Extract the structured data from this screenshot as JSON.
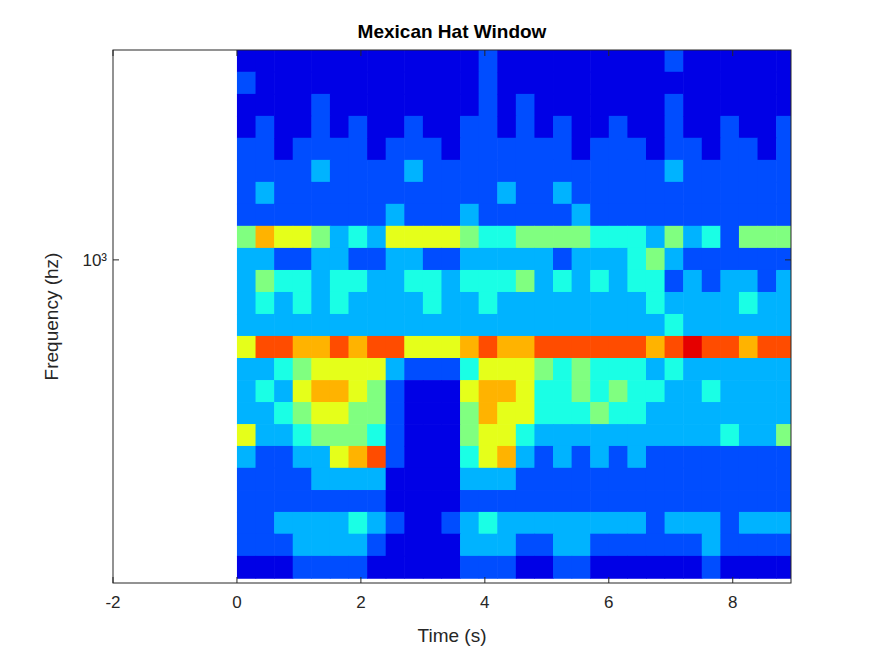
{
  "chart_data": {
    "type": "heatmap",
    "title": "Mexican Hat Window",
    "x_label": "Time (s)",
    "y_label": "Frequency (hz)",
    "log": "y",
    "xlim": [
      -2,
      8.94
    ],
    "ylim": [
      134,
      3690
    ],
    "xticks": [
      -2,
      0,
      2,
      4,
      6,
      8
    ],
    "yticks": [
      {
        "value": 1000,
        "label": "10³"
      }
    ],
    "zlim": [
      0,
      10
    ],
    "x": [
      0.15,
      0.45,
      0.75,
      1.05,
      1.35,
      1.65,
      1.95,
      2.25,
      2.55,
      2.85,
      3.15,
      3.45,
      3.75,
      4.05,
      4.35,
      4.65,
      4.95,
      5.25,
      5.55,
      5.85,
      6.15,
      6.45,
      6.75,
      7.05,
      7.35,
      7.65,
      7.95,
      8.25,
      8.55,
      8.85
    ],
    "y": [
      3450,
      3010,
      2620,
      2290,
      1995,
      1740,
      1517,
      1324,
      1154,
      1006,
      877,
      765,
      667,
      582,
      507,
      442,
      386,
      336,
      294,
      256,
      223,
      195,
      170,
      148
    ],
    "cells": [
      [
        1,
        1,
        1,
        1,
        1,
        1,
        1,
        1,
        1,
        1,
        1,
        1,
        1,
        2,
        1,
        1,
        1,
        1,
        1,
        1,
        1,
        1,
        1,
        2,
        1,
        1,
        1,
        1,
        1,
        1
      ],
      [
        2,
        1,
        1,
        1,
        1,
        1,
        1,
        1,
        1,
        1,
        1,
        1,
        1,
        2,
        1,
        1,
        1,
        1,
        1,
        1,
        1,
        1,
        1,
        1,
        1,
        1,
        1,
        1,
        1,
        1
      ],
      [
        1,
        1,
        1,
        1,
        2,
        1,
        1,
        1,
        1,
        1,
        1,
        1,
        1,
        2,
        1,
        2,
        1,
        1,
        1,
        1,
        1,
        1,
        1,
        2,
        1,
        1,
        1,
        1,
        1,
        1
      ],
      [
        1,
        2,
        1,
        1,
        2,
        1,
        2,
        1,
        1,
        2,
        1,
        1,
        2,
        2,
        1,
        2,
        1,
        2,
        1,
        1,
        2,
        1,
        1,
        2,
        1,
        1,
        2,
        1,
        1,
        2
      ],
      [
        2,
        2,
        1,
        2,
        2,
        2,
        2,
        1,
        2,
        2,
        2,
        1,
        2,
        2,
        2,
        2,
        2,
        2,
        1,
        2,
        2,
        2,
        1,
        2,
        2,
        1,
        2,
        2,
        1,
        2
      ],
      [
        2,
        2,
        2,
        2,
        3,
        2,
        2,
        2,
        2,
        3,
        2,
        2,
        2,
        2,
        2,
        2,
        2,
        2,
        2,
        2,
        2,
        2,
        2,
        3,
        2,
        2,
        2,
        2,
        2,
        2
      ],
      [
        2,
        3,
        2,
        2,
        2,
        2,
        2,
        2,
        2,
        2,
        2,
        2,
        2,
        2,
        3,
        2,
        2,
        3,
        2,
        2,
        2,
        2,
        2,
        2,
        2,
        2,
        2,
        2,
        2,
        2
      ],
      [
        2,
        2,
        2,
        2,
        2,
        2,
        2,
        2,
        3,
        2,
        2,
        2,
        3,
        2,
        2,
        2,
        2,
        2,
        3,
        2,
        2,
        2,
        2,
        2,
        2,
        2,
        2,
        2,
        2,
        2
      ],
      [
        5,
        7,
        6,
        6,
        5,
        3,
        4,
        3,
        6,
        6,
        6,
        6,
        5,
        4,
        4,
        5,
        5,
        5,
        5,
        4,
        4,
        4,
        3,
        5,
        3,
        4,
        2,
        5,
        5,
        5
      ],
      [
        3,
        3,
        2,
        2,
        3,
        3,
        2,
        2,
        3,
        3,
        2,
        2,
        3,
        3,
        3,
        3,
        3,
        2,
        3,
        3,
        3,
        4,
        5,
        3,
        2,
        2,
        2,
        2,
        2,
        2
      ],
      [
        3,
        5,
        4,
        4,
        3,
        4,
        4,
        3,
        3,
        4,
        4,
        3,
        4,
        4,
        4,
        5,
        3,
        4,
        3,
        4,
        3,
        4,
        4,
        2,
        3,
        2,
        3,
        3,
        2,
        3
      ],
      [
        3,
        4,
        3,
        4,
        3,
        4,
        3,
        3,
        3,
        3,
        4,
        3,
        3,
        4,
        3,
        3,
        3,
        3,
        3,
        3,
        3,
        3,
        4,
        3,
        3,
        3,
        3,
        4,
        3,
        3
      ],
      [
        3,
        3,
        3,
        3,
        3,
        3,
        3,
        3,
        3,
        3,
        3,
        3,
        3,
        3,
        3,
        3,
        3,
        3,
        3,
        3,
        3,
        3,
        3,
        4,
        3,
        3,
        3,
        3,
        3,
        3
      ],
      [
        6,
        8,
        8,
        7,
        7,
        8,
        7,
        8,
        8,
        6,
        6,
        6,
        7,
        8,
        7,
        7,
        8,
        8,
        8,
        8,
        8,
        8,
        7,
        8,
        9,
        8,
        8,
        7,
        8,
        8
      ],
      [
        3,
        3,
        4,
        5,
        6,
        6,
        6,
        6,
        3,
        2,
        2,
        2,
        4,
        6,
        6,
        6,
        5,
        4,
        5,
        4,
        4,
        4,
        3,
        4,
        3,
        3,
        3,
        3,
        3,
        3
      ],
      [
        3,
        4,
        3,
        6,
        7,
        7,
        6,
        5,
        2,
        1,
        1,
        1,
        6,
        7,
        7,
        6,
        4,
        4,
        5,
        4,
        5,
        4,
        4,
        3,
        3,
        4,
        3,
        3,
        3,
        3
      ],
      [
        3,
        3,
        4,
        5,
        6,
        6,
        5,
        5,
        2,
        1,
        1,
        1,
        5,
        7,
        6,
        6,
        4,
        4,
        4,
        5,
        4,
        4,
        3,
        3,
        3,
        3,
        3,
        3,
        3,
        3
      ],
      [
        6,
        3,
        3,
        4,
        5,
        5,
        5,
        4,
        2,
        1,
        1,
        1,
        5,
        6,
        6,
        4,
        3,
        3,
        3,
        3,
        3,
        3,
        3,
        3,
        3,
        3,
        4,
        3,
        3,
        5
      ],
      [
        3,
        2,
        2,
        3,
        3,
        6,
        7,
        8,
        2,
        1,
        1,
        1,
        4,
        6,
        7,
        3,
        2,
        3,
        2,
        3,
        2,
        3,
        2,
        2,
        2,
        2,
        2,
        2,
        2,
        2
      ],
      [
        2,
        2,
        2,
        2,
        3,
        3,
        3,
        3,
        1,
        1,
        1,
        1,
        3,
        3,
        3,
        2,
        2,
        2,
        2,
        2,
        2,
        2,
        2,
        2,
        2,
        2,
        2,
        2,
        2,
        2
      ],
      [
        2,
        2,
        2,
        2,
        2,
        2,
        2,
        2,
        1,
        1,
        1,
        1,
        2,
        2,
        2,
        2,
        2,
        2,
        2,
        2,
        2,
        2,
        2,
        2,
        2,
        2,
        2,
        2,
        2,
        2
      ],
      [
        2,
        2,
        3,
        3,
        3,
        3,
        4,
        3,
        2,
        1,
        1,
        2,
        3,
        4,
        3,
        3,
        3,
        3,
        3,
        3,
        3,
        3,
        2,
        3,
        3,
        3,
        2,
        3,
        3,
        3
      ],
      [
        2,
        2,
        2,
        3,
        3,
        3,
        3,
        2,
        1,
        1,
        1,
        1,
        3,
        3,
        3,
        2,
        2,
        3,
        3,
        2,
        2,
        2,
        2,
        2,
        2,
        3,
        2,
        2,
        2,
        2
      ],
      [
        1,
        1,
        1,
        2,
        2,
        2,
        2,
        1,
        1,
        1,
        1,
        1,
        2,
        2,
        2,
        1,
        1,
        2,
        2,
        1,
        1,
        1,
        1,
        1,
        1,
        2,
        1,
        1,
        1,
        1
      ]
    ]
  }
}
